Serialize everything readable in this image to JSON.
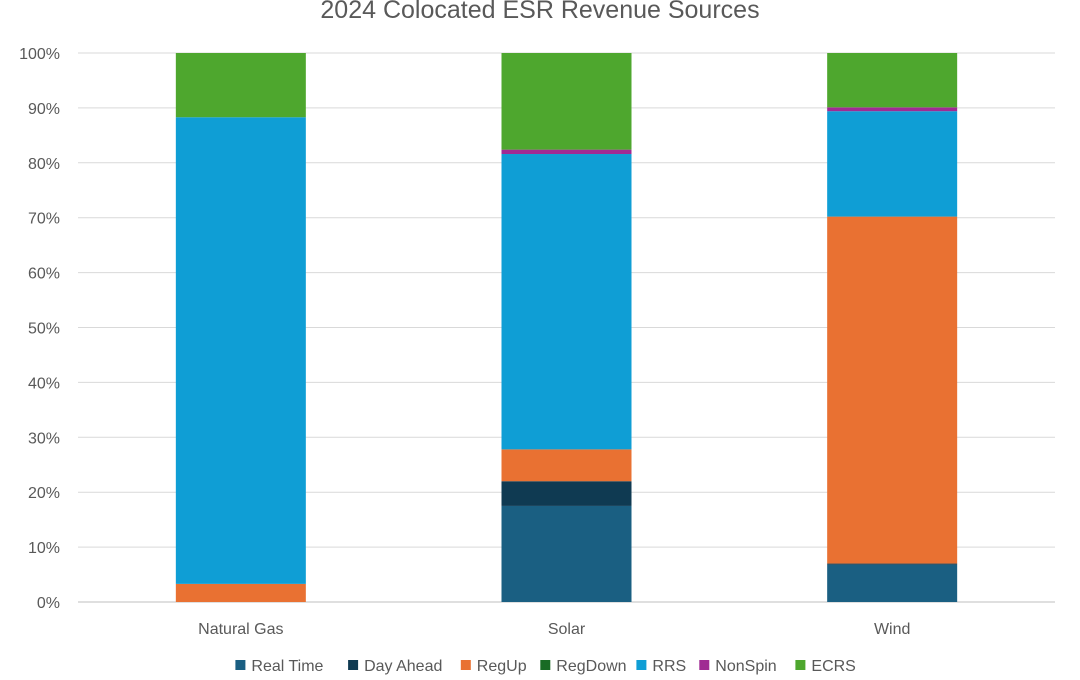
{
  "chart_data": {
    "type": "bar",
    "stacked": true,
    "normalized": true,
    "title": "2024 Colocated ESR Revenue Sources",
    "xlabel": "",
    "ylabel": "",
    "categories": [
      "Natural Gas",
      "Solar",
      "Wind"
    ],
    "ylim": [
      0,
      100
    ],
    "y_ticks": [
      "0%",
      "10%",
      "20%",
      "30%",
      "40%",
      "50%",
      "60%",
      "70%",
      "80%",
      "90%",
      "100%"
    ],
    "grid": true,
    "legend_position": "bottom",
    "series": [
      {
        "name": "Real Time",
        "color": "#1a5f82",
        "values": [
          0.0,
          17.5,
          6.8
        ]
      },
      {
        "name": "Day Ahead",
        "color": "#0f3a52",
        "values": [
          0.0,
          4.5,
          0.2
        ]
      },
      {
        "name": "RegUp",
        "color": "#e97132",
        "values": [
          3.3,
          5.8,
          63.2
        ]
      },
      {
        "name": "RegDown",
        "color": "#196b24",
        "values": [
          0.0,
          0.0,
          0.0
        ]
      },
      {
        "name": "RRS",
        "color": "#0f9ed5",
        "values": [
          85.0,
          53.8,
          19.2
        ]
      },
      {
        "name": "NonSpin",
        "color": "#a02b93",
        "values": [
          0.0,
          0.8,
          0.7
        ]
      },
      {
        "name": "ECRS",
        "color": "#4ea72e",
        "values": [
          11.7,
          17.6,
          9.9
        ]
      }
    ]
  }
}
